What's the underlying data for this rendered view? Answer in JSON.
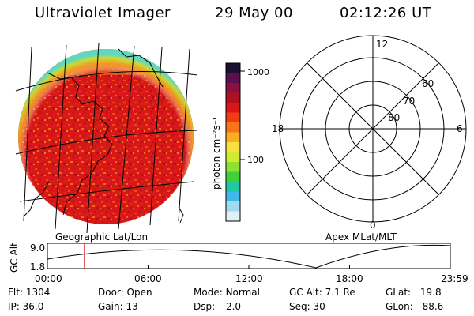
{
  "header": {
    "title": "Ultraviolet Imager",
    "date": "29 May 00",
    "time": "02:12:26 UT"
  },
  "colorbar": {
    "unit_label": "photon cm⁻²s⁻¹",
    "tick_labels": [
      "1000",
      "100"
    ],
    "colors": [
      "#1a1030",
      "#5a1050",
      "#8a1040",
      "#b01020",
      "#d81818",
      "#f03c10",
      "#f8741a",
      "#f8b020",
      "#f8e040",
      "#d0ec30",
      "#90e030",
      "#40d038",
      "#20c8a0",
      "#40b8e8",
      "#a0dcf0",
      "#e0f0f8"
    ]
  },
  "polar_plot": {
    "mlt_labels": {
      "top": "12",
      "left": "18",
      "right": "6",
      "bottom": "0"
    },
    "lat_labels": [
      "60",
      "70",
      "80"
    ]
  },
  "panel_labels": {
    "left": "Geographic Lat/Lon",
    "right": "Apex MLat/MLT"
  },
  "altitude_chart": {
    "ylabel": "GC Alt",
    "y_ticks": [
      "9.0",
      "1.8"
    ],
    "x_ticks": [
      "00:00",
      "06:00",
      "12:00",
      "18:00",
      "23:59"
    ],
    "cursor_hour": 2.2
  },
  "status": {
    "row1": [
      {
        "label": "Flt:",
        "value": "1304"
      },
      {
        "label": "Door:",
        "value": "Open"
      },
      {
        "label": "Mode:",
        "value": "Normal"
      },
      {
        "label": "GC Alt:",
        "value": "7.1 Re"
      },
      {
        "label": "GLat:",
        "value": "19.8"
      }
    ],
    "row2": [
      {
        "label": "IP:",
        "value": "36.0"
      },
      {
        "label": "Gain:",
        "value": "13"
      },
      {
        "label": "Dsp:",
        "value": "2.0"
      },
      {
        "label": "Seq:",
        "value": "30"
      },
      {
        "label": "GLon:",
        "value": "88.6"
      }
    ]
  }
}
